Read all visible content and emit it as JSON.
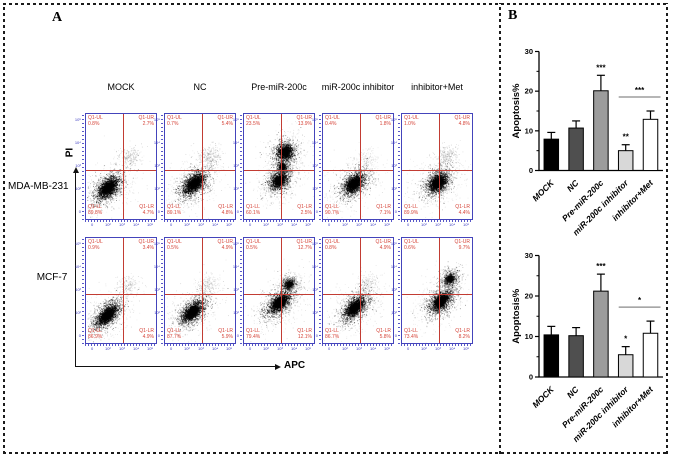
{
  "panel_a": {
    "label": "A",
    "columns": [
      "MOCK",
      "NC",
      "Pre-miR-200c",
      "miR-200c inhibitor",
      "inhibitor+Met"
    ],
    "rows": [
      "MDA-MB-231",
      "MCF-7"
    ],
    "y_axis_label": "PI",
    "x_axis_label": "APC",
    "left_tick_labels": [
      "10⁵",
      "10⁴",
      "10³",
      "10²",
      "0"
    ],
    "bottom_tick_labels": [
      "0",
      "10²",
      "10³",
      "10⁴",
      "10⁵"
    ],
    "plots": [
      {
        "row": "MDA-MB-231",
        "col": "MOCK",
        "quadrants": {
          "Q1-UL": "0.8%",
          "Q1-UR": "2.7%",
          "Q1-LL": "89.8%",
          "Q1-LR": "4.7%"
        },
        "clusters": [
          [
            0.31,
            0.7,
            0.15,
            0.085,
            950,
            0.55
          ],
          [
            0.31,
            0.7,
            0.28,
            0.17,
            430,
            0.15
          ],
          [
            0.62,
            0.41,
            0.085,
            0.075,
            210,
            0.2
          ]
        ]
      },
      {
        "row": "MDA-MB-231",
        "col": "NC",
        "quadrants": {
          "Q1-UL": "0.7%",
          "Q1-UR": "5.4%",
          "Q1-LL": "89.1%",
          "Q1-LR": "4.8%"
        },
        "clusters": [
          [
            0.41,
            0.66,
            0.14,
            0.082,
            950,
            0.55
          ],
          [
            0.41,
            0.66,
            0.26,
            0.17,
            430,
            0.15
          ],
          [
            0.63,
            0.4,
            0.085,
            0.075,
            230,
            0.2
          ]
        ]
      },
      {
        "row": "MDA-MB-231",
        "col": "Pre-miR-200c",
        "quadrants": {
          "Q1-UL": "23.5%",
          "Q1-UR": "13.9%",
          "Q1-LL": "60.1%",
          "Q1-LR": "2.5%"
        },
        "clusters": [
          [
            0.5,
            0.63,
            0.11,
            0.082,
            700,
            0.5
          ],
          [
            0.5,
            0.63,
            0.21,
            0.16,
            360,
            0.14
          ],
          [
            0.58,
            0.36,
            0.1,
            0.09,
            650,
            0.5
          ],
          [
            0.58,
            0.36,
            0.18,
            0.15,
            260,
            0.14
          ],
          [
            0.545,
            0.5,
            0.075,
            0.07,
            260,
            0.32
          ]
        ]
      },
      {
        "row": "MDA-MB-231",
        "col": "miR-200c inhibitor",
        "quadrants": {
          "Q1-UL": "0.4%",
          "Q1-UR": "1.8%",
          "Q1-LL": "90.7%",
          "Q1-LR": "7.1%"
        },
        "clusters": [
          [
            0.44,
            0.66,
            0.13,
            0.082,
            950,
            0.55
          ],
          [
            0.44,
            0.66,
            0.25,
            0.17,
            430,
            0.15
          ],
          [
            0.62,
            0.42,
            0.075,
            0.065,
            120,
            0.14
          ]
        ]
      },
      {
        "row": "MDA-MB-231",
        "col": "inhibitor+Met",
        "quadrants": {
          "Q1-UL": "1.0%",
          "Q1-UR": "4.8%",
          "Q1-LL": "89.9%",
          "Q1-LR": "4.4%"
        },
        "clusters": [
          [
            0.51,
            0.65,
            0.12,
            0.082,
            950,
            0.55
          ],
          [
            0.51,
            0.65,
            0.23,
            0.17,
            430,
            0.15
          ],
          [
            0.64,
            0.4,
            0.085,
            0.075,
            230,
            0.2
          ]
        ]
      },
      {
        "row": "MCF-7",
        "col": "MOCK",
        "quadrants": {
          "Q1-UL": "0.9%",
          "Q1-UR": "3.4%",
          "Q1-LL": "86.9%",
          "Q1-LR": "4.9%"
        },
        "clusters": [
          [
            0.3,
            0.73,
            0.15,
            0.075,
            950,
            0.55
          ],
          [
            0.3,
            0.73,
            0.28,
            0.16,
            430,
            0.15
          ],
          [
            0.6,
            0.45,
            0.075,
            0.065,
            160,
            0.17
          ]
        ]
      },
      {
        "row": "MCF-7",
        "col": "NC",
        "quadrants": {
          "Q1-UL": "0.5%",
          "Q1-UR": "4.9%",
          "Q1-LL": "87.7%",
          "Q1-LR": "5.9%"
        },
        "clusters": [
          [
            0.39,
            0.7,
            0.14,
            0.075,
            950,
            0.55
          ],
          [
            0.39,
            0.7,
            0.26,
            0.16,
            430,
            0.15
          ],
          [
            0.61,
            0.44,
            0.08,
            0.065,
            180,
            0.18
          ]
        ]
      },
      {
        "row": "MCF-7",
        "col": "Pre-miR-200c",
        "quadrants": {
          "Q1-UL": "0.5%",
          "Q1-UR": "12.7%",
          "Q1-LL": "79.4%",
          "Q1-LR": "12.1%"
        },
        "clusters": [
          [
            0.5,
            0.615,
            0.15,
            0.082,
            900,
            0.5
          ],
          [
            0.5,
            0.615,
            0.27,
            0.16,
            410,
            0.14
          ],
          [
            0.64,
            0.44,
            0.085,
            0.07,
            330,
            0.32
          ]
        ]
      },
      {
        "row": "MCF-7",
        "col": "miR-200c inhibitor",
        "quadrants": {
          "Q1-UL": "0.8%",
          "Q1-UR": "4.9%",
          "Q1-LL": "86.7%",
          "Q1-LR": "5.8%"
        },
        "clusters": [
          [
            0.45,
            0.66,
            0.14,
            0.075,
            950,
            0.55
          ],
          [
            0.45,
            0.66,
            0.26,
            0.16,
            430,
            0.15
          ],
          [
            0.62,
            0.43,
            0.078,
            0.065,
            160,
            0.17
          ]
        ]
      },
      {
        "row": "MCF-7",
        "col": "inhibitor+Met",
        "quadrants": {
          "Q1-UL": "0.6%",
          "Q1-UR": "9.7%",
          "Q1-LL": "73.4%",
          "Q1-LR": "8.2%"
        },
        "clusters": [
          [
            0.55,
            0.6,
            0.14,
            0.082,
            900,
            0.5
          ],
          [
            0.55,
            0.6,
            0.26,
            0.16,
            410,
            0.14
          ],
          [
            0.68,
            0.385,
            0.09,
            0.078,
            340,
            0.34
          ]
        ]
      }
    ]
  },
  "panel_b": {
    "label": "B"
  },
  "chart_data": [
    {
      "type": "bar",
      "title": "",
      "ylabel": "Apoptosis%",
      "xlabel": "",
      "ylim": [
        0,
        30
      ],
      "yticks": [
        0,
        10,
        20,
        30
      ],
      "categories": [
        "MOCK",
        "NC",
        "Pre-miR-200c",
        "miR-200c inhibitor",
        "inhibitor+Met"
      ],
      "values": [
        7.9,
        10.7,
        20.1,
        5.0,
        12.9
      ],
      "errors": [
        1.7,
        1.8,
        3.9,
        1.5,
        2.1
      ],
      "bar_colors": [
        "#000000",
        "#4f4f4f",
        "#9c9c9c",
        "#d8d8d8",
        "#ffffff"
      ],
      "annotations": [
        {
          "text": "***",
          "over_category": "Pre-miR-200c"
        },
        {
          "text": "**",
          "over_category": "miR-200c inhibitor"
        },
        {
          "text": "***",
          "bracket": [
            "miR-200c inhibitor",
            "inhibitor+Met"
          ]
        }
      ]
    },
    {
      "type": "bar",
      "title": "",
      "ylabel": "Apoptosis%",
      "xlabel": "",
      "ylim": [
        0,
        30
      ],
      "yticks": [
        0,
        10,
        20,
        30
      ],
      "categories": [
        "MOCK",
        "NC",
        "Pre-miR-200c",
        "miR-200c inhibitor",
        "inhibitor+Met"
      ],
      "values": [
        10.4,
        10.2,
        21.2,
        5.5,
        10.8
      ],
      "errors": [
        2.1,
        2.0,
        4.2,
        2.0,
        3.0
      ],
      "bar_colors": [
        "#000000",
        "#4f4f4f",
        "#9c9c9c",
        "#d8d8d8",
        "#ffffff"
      ],
      "annotations": [
        {
          "text": "***",
          "over_category": "Pre-miR-200c"
        },
        {
          "text": "*",
          "over_category": "miR-200c inhibitor"
        },
        {
          "text": "*",
          "bracket": [
            "miR-200c inhibitor",
            "inhibitor+Met"
          ]
        }
      ]
    }
  ]
}
